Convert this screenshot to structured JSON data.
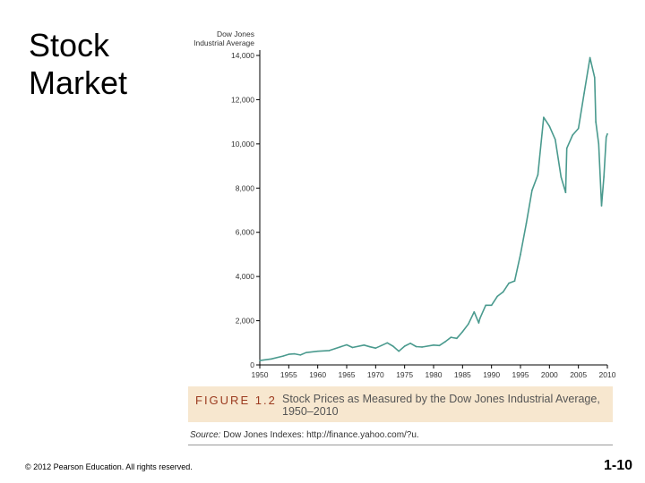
{
  "slide": {
    "title_line1": "Stock",
    "title_line2": "Market",
    "copyright": "© 2012 Pearson Education. All rights reserved.",
    "page_number": "1-10"
  },
  "figure": {
    "label": "FIGURE 1.2",
    "caption_line1": "Stock Prices as Measured by the Dow Jones Industrial Average,",
    "caption_line2": "1950–2010",
    "source_label": "Source:",
    "source_text": "Dow Jones Indexes: http://finance.yahoo.com/?u."
  },
  "colors": {
    "line": "#4a9a8e",
    "axis": "#000000",
    "caption_box": "#f7e7cf",
    "figure_label": "#9b3a1f"
  },
  "chart_data": {
    "type": "line",
    "title": "",
    "ylabel_line1": "Dow Jones",
    "ylabel_line2": "Industrial Average",
    "xlabel": "",
    "xlim": [
      1950,
      2010
    ],
    "ylim": [
      0,
      14000
    ],
    "x_ticks": [
      1950,
      1955,
      1960,
      1965,
      1970,
      1975,
      1980,
      1985,
      1990,
      1995,
      2000,
      2005,
      2010
    ],
    "y_ticks": [
      0,
      2000,
      4000,
      6000,
      8000,
      10000,
      12000,
      14000
    ],
    "y_tick_labels": [
      "0",
      "2,000",
      "4,000",
      "6,000",
      "8,000",
      "10,000",
      "12,000",
      "14,000"
    ],
    "series": [
      {
        "name": "Dow Jones Industrial Average",
        "x": [
          1950,
          1952,
          1954,
          1955,
          1956,
          1957,
          1958,
          1960,
          1962,
          1963,
          1965,
          1966,
          1968,
          1969,
          1970,
          1971,
          1972,
          1973,
          1974,
          1975,
          1976,
          1977,
          1978,
          1980,
          1981,
          1982,
          1983,
          1984,
          1985,
          1986,
          1987,
          1987.8,
          1988,
          1989,
          1990,
          1991,
          1992,
          1993,
          1994,
          1995,
          1996,
          1997,
          1998,
          1999,
          2000,
          2001,
          2002,
          2002.8,
          2003,
          2004,
          2005,
          2006,
          2007,
          2007.8,
          2008,
          2008.5,
          2009,
          2009.4,
          2009.8,
          2010
        ],
        "values": [
          200,
          270,
          400,
          480,
          500,
          450,
          560,
          620,
          650,
          740,
          910,
          790,
          900,
          820,
          760,
          880,
          1000,
          850,
          620,
          850,
          980,
          830,
          810,
          900,
          880,
          1050,
          1250,
          1200,
          1500,
          1850,
          2400,
          1900,
          2100,
          2700,
          2700,
          3100,
          3300,
          3700,
          3800,
          5000,
          6400,
          7900,
          8600,
          11200,
          10800,
          10200,
          8500,
          7800,
          9800,
          10400,
          10700,
          12300,
          13900,
          13000,
          11000,
          10000,
          7200,
          8500,
          10300,
          10450
        ]
      }
    ]
  }
}
